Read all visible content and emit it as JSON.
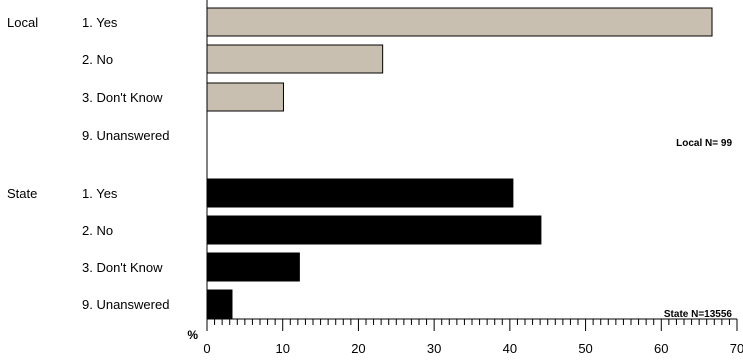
{
  "chart_data": {
    "type": "bar",
    "orientation": "horizontal",
    "groups": [
      {
        "label": "Local",
        "color": "#c8bfb0",
        "n_label": "Local N= 99",
        "categories": [
          "1. Yes",
          "2. No",
          "3. Don't Know",
          "9. Unanswered"
        ],
        "values": [
          66.7,
          23.2,
          10.1,
          0
        ]
      },
      {
        "label": "State",
        "color": "#000000",
        "n_label": "State N=13556",
        "categories": [
          "1. Yes",
          "2. No",
          "3. Don't Know",
          "9. Unanswered"
        ],
        "values": [
          40.4,
          44.1,
          12.2,
          3.3
        ]
      }
    ],
    "xlabel": "%",
    "xlim": [
      0,
      70
    ],
    "xticks": [
      0,
      10,
      20,
      30,
      40,
      50,
      60,
      70
    ],
    "minor_tick_step": 1,
    "grid": false
  }
}
